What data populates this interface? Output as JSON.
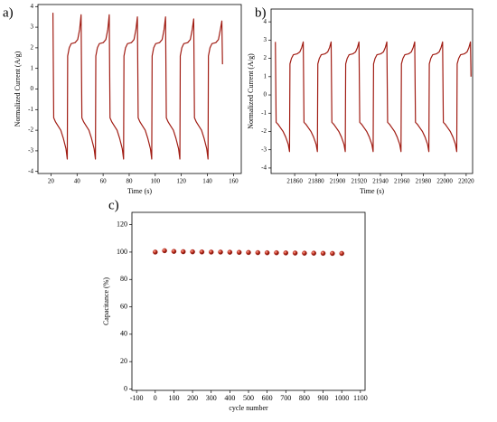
{
  "chart_data": [
    {
      "type": "line",
      "label": "a)",
      "x_label": "Time (s)",
      "y_label": "Normalized Current (A/g)",
      "color": "#a11d14",
      "xlim": [
        10,
        166
      ],
      "ylim": [
        -4.1,
        4.1
      ],
      "xticks": [
        20,
        40,
        60,
        80,
        100,
        120,
        140,
        160
      ],
      "yticks": [
        -4,
        -3,
        -2,
        -1,
        0,
        1,
        2,
        3,
        4
      ],
      "x": [
        21.5,
        22.1,
        23.5,
        25.5,
        27.5,
        29.5,
        31.5,
        32.5,
        32.8,
        34,
        35.5,
        38.5,
        40.5,
        42,
        43.1,
        43.7,
        45.1,
        47.1,
        49.1,
        51.1,
        53.1,
        54.1,
        54.4,
        55.6,
        57.1,
        60.1,
        62.1,
        63.6,
        64.7,
        65.3,
        66.7,
        68.7,
        70.7,
        72.7,
        74.7,
        75.7,
        76,
        77.2,
        78.7,
        81.7,
        83.7,
        85.2,
        86.3,
        86.9,
        88.3,
        90.3,
        92.3,
        94.3,
        96.3,
        97.3,
        97.6,
        98.8,
        100.3,
        103.3,
        105.3,
        106.8,
        107.9,
        108.5,
        109.9,
        111.9,
        113.9,
        115.9,
        117.9,
        118.9,
        119.2,
        120.4,
        121.9,
        124.9,
        126.9,
        128.4,
        129.5,
        130.1,
        131.5,
        133.5,
        135.5,
        137.5,
        139.5,
        140.5,
        140.8,
        142,
        143.5,
        146.5,
        148.5,
        150,
        151.1,
        151.6
      ],
      "values": [
        3.7,
        -1.4,
        -1.6,
        -1.8,
        -2.0,
        -2.4,
        -2.9,
        -3.4,
        1.6,
        2.0,
        2.2,
        2.25,
        2.4,
        2.9,
        3.6,
        -1.4,
        -1.6,
        -1.8,
        -2.0,
        -2.4,
        -2.9,
        -3.4,
        1.6,
        2.0,
        2.2,
        2.25,
        2.4,
        2.9,
        3.6,
        -1.4,
        -1.6,
        -1.8,
        -2.0,
        -2.4,
        -2.9,
        -3.4,
        1.6,
        2.0,
        2.2,
        2.25,
        2.4,
        2.9,
        3.5,
        -1.4,
        -1.6,
        -1.8,
        -2.0,
        -2.4,
        -2.9,
        -3.4,
        1.6,
        2.0,
        2.2,
        2.25,
        2.4,
        2.9,
        3.5,
        -1.4,
        -1.6,
        -1.8,
        -2.0,
        -2.4,
        -2.9,
        -3.4,
        1.6,
        2.0,
        2.2,
        2.25,
        2.4,
        2.9,
        3.4,
        -1.4,
        -1.6,
        -1.8,
        -2.0,
        -2.4,
        -2.9,
        -3.4,
        1.6,
        2.0,
        2.2,
        2.25,
        2.4,
        2.9,
        3.3,
        1.2
      ]
    },
    {
      "type": "line",
      "label": "b)",
      "x_label": "Time (s)",
      "y_label": "Normalized Current (A/g)",
      "color": "#a11d14",
      "xlim": [
        21838,
        22026
      ],
      "ylim": [
        -4.3,
        4.7
      ],
      "xticks": [
        21860,
        21880,
        21900,
        21920,
        21940,
        21960,
        21980,
        22000,
        22020
      ],
      "yticks": [
        -4,
        -3,
        -2,
        -1,
        0,
        1,
        2,
        3,
        4
      ],
      "x": [
        21842,
        21842.7,
        21844.4,
        21846.8,
        21849.2,
        21851.6,
        21854,
        21855.2,
        21855.6,
        21857,
        21858.8,
        21862.4,
        21864.8,
        21866.6,
        21868,
        21868.7,
        21870.4,
        21872.8,
        21875.2,
        21877.6,
        21880,
        21881.2,
        21881.6,
        21883,
        21884.8,
        21888.4,
        21890.8,
        21892.6,
        21894,
        21894.7,
        21896.4,
        21898.8,
        21901.2,
        21903.6,
        21906,
        21907.2,
        21907.6,
        21909,
        21910.8,
        21914.4,
        21916.8,
        21918.6,
        21920,
        21920.7,
        21922.4,
        21924.8,
        21927.2,
        21929.6,
        21932,
        21933.2,
        21933.6,
        21935,
        21936.8,
        21940.4,
        21942.8,
        21944.6,
        21946,
        21946.7,
        21948.4,
        21950.8,
        21953.2,
        21955.6,
        21958,
        21959.2,
        21959.6,
        21961,
        21962.8,
        21966.4,
        21968.8,
        21970.6,
        21972,
        21972.7,
        21974.4,
        21976.8,
        21979.2,
        21981.6,
        21984,
        21985.2,
        21985.6,
        21987,
        21988.8,
        21992.4,
        21994.8,
        21996.6,
        21998,
        21998.7,
        22000.4,
        22002.8,
        22005.2,
        22007.6,
        22010,
        22011.2,
        22011.6,
        22013,
        22014.8,
        22018.4,
        22020.8,
        22022.6,
        22024,
        22024.5
      ],
      "values": [
        2.9,
        -1.5,
        -1.6,
        -1.8,
        -2.0,
        -2.3,
        -2.7,
        -3.1,
        1.7,
        2.0,
        2.2,
        2.25,
        2.35,
        2.6,
        2.9,
        -1.5,
        -1.6,
        -1.8,
        -2.0,
        -2.3,
        -2.7,
        -3.1,
        1.7,
        2.0,
        2.2,
        2.25,
        2.35,
        2.6,
        2.9,
        -1.5,
        -1.6,
        -1.8,
        -2.0,
        -2.3,
        -2.7,
        -3.1,
        1.7,
        2.0,
        2.2,
        2.25,
        2.35,
        2.6,
        2.9,
        -1.5,
        -1.6,
        -1.8,
        -2.0,
        -2.3,
        -2.7,
        -3.1,
        1.7,
        2.0,
        2.2,
        2.25,
        2.35,
        2.6,
        2.9,
        -1.5,
        -1.6,
        -1.8,
        -2.0,
        -2.3,
        -2.7,
        -3.1,
        1.7,
        2.0,
        2.2,
        2.25,
        2.35,
        2.6,
        2.9,
        -1.5,
        -1.6,
        -1.8,
        -2.0,
        -2.3,
        -2.7,
        -3.1,
        1.7,
        2.0,
        2.2,
        2.25,
        2.35,
        2.6,
        2.9,
        -1.5,
        -1.6,
        -1.8,
        -2.0,
        -2.3,
        -2.7,
        -3.1,
        1.7,
        2.0,
        2.2,
        2.25,
        2.35,
        2.6,
        2.9,
        1.0
      ]
    },
    {
      "type": "scatter",
      "label": "c)",
      "x_label": "cycle number",
      "y_label": "Capacitance (%)",
      "color": "#b3261e",
      "xlim": [
        -125,
        1125
      ],
      "ylim": [
        -1,
        129
      ],
      "xticks": [
        -100,
        0,
        100,
        200,
        300,
        400,
        500,
        600,
        700,
        800,
        900,
        1000,
        1100
      ],
      "yticks": [
        0,
        20,
        40,
        60,
        80,
        100,
        120
      ],
      "x": [
        0,
        50,
        100,
        150,
        200,
        250,
        300,
        350,
        400,
        450,
        500,
        550,
        600,
        650,
        700,
        750,
        800,
        850,
        900,
        950,
        1000
      ],
      "values": [
        100,
        101,
        100.5,
        100.3,
        100.2,
        100.1,
        100,
        100,
        99.9,
        99.8,
        99.7,
        99.6,
        99.5,
        99.5,
        99.4,
        99.3,
        99.2,
        99.2,
        99.1,
        99.0,
        99.0
      ]
    }
  ]
}
